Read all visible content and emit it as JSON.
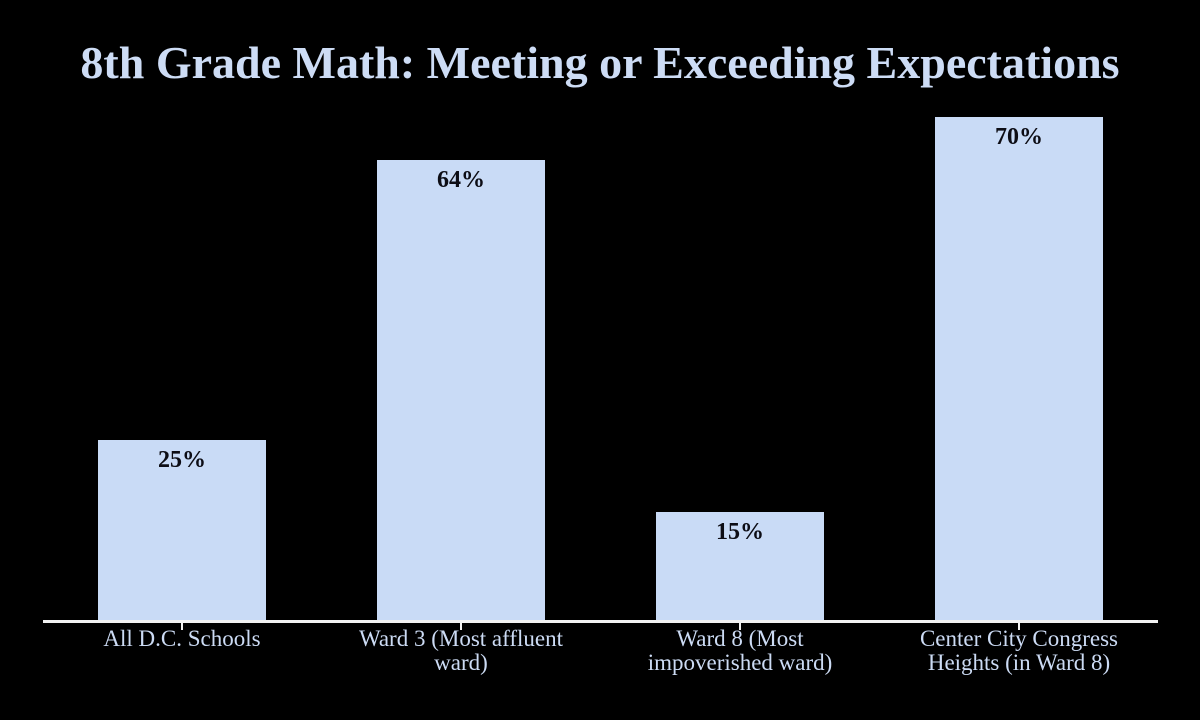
{
  "chart_data": {
    "type": "bar",
    "title": "8th Grade Math: Meeting or Exceeding Expectations",
    "categories": [
      "All D.C. Schools",
      "Ward 3 (Most affluent ward)",
      "Ward 8 (Most impoverished ward)",
      "Center City Congress Heights (in Ward 8)"
    ],
    "category_label_lines": [
      [
        "All D.C. Schools"
      ],
      [
        "Ward 3 (Most affluent",
        "ward)"
      ],
      [
        "Ward 8 (Most",
        "impoverished ward)"
      ],
      [
        "Center City Congress",
        "Heights (in Ward 8)"
      ]
    ],
    "values": [
      25,
      64,
      15,
      70
    ],
    "value_labels": [
      "25%",
      "64%",
      "15%",
      "70%"
    ],
    "xlabel": "",
    "ylabel": "",
    "ylim": [
      0,
      75
    ],
    "grid": false,
    "legend": false,
    "value_labels_position": "inside-top",
    "colors": {
      "background": "#000000",
      "bar_fill": "#c9dbf6",
      "title_text": "#cddcf5",
      "value_label_text": "#0d0d15",
      "axis_line": "#f2f2f2",
      "category_label_text": "#ccdbf4"
    }
  }
}
